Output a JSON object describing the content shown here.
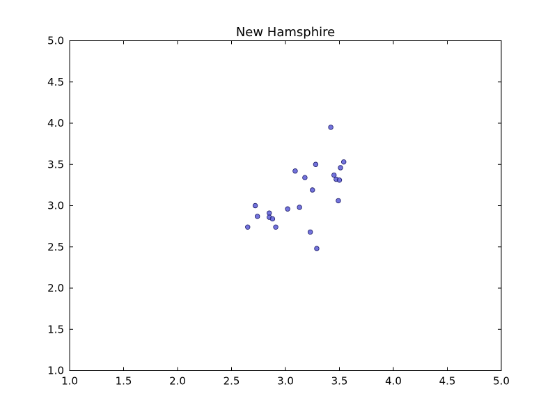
{
  "chart_data": {
    "type": "scatter",
    "title": "New Hamsphire",
    "xlabel": "",
    "ylabel": "",
    "xlim": [
      1.0,
      5.0
    ],
    "ylim": [
      1.0,
      5.0
    ],
    "grid": false,
    "x_ticks": [
      1.0,
      1.5,
      2.0,
      2.5,
      3.0,
      3.5,
      4.0,
      4.5,
      5.0
    ],
    "y_ticks": [
      1.0,
      1.5,
      2.0,
      2.5,
      3.0,
      3.5,
      4.0,
      4.5,
      5.0
    ],
    "x_tick_labels": [
      "1.0",
      "1.5",
      "2.0",
      "2.5",
      "3.0",
      "3.5",
      "4.0",
      "4.5",
      "5.0"
    ],
    "y_tick_labels": [
      "1.0",
      "1.5",
      "2.0",
      "2.5",
      "3.0",
      "3.5",
      "4.0",
      "4.5",
      "5.0"
    ],
    "marker_color": "#5b5bd6",
    "marker_edge_color": "#1a1a66",
    "series": [
      {
        "points": [
          {
            "x": 3.42,
            "y": 3.95
          },
          {
            "x": 3.54,
            "y": 3.53
          },
          {
            "x": 3.28,
            "y": 3.5
          },
          {
            "x": 3.51,
            "y": 3.46
          },
          {
            "x": 3.09,
            "y": 3.42
          },
          {
            "x": 3.45,
            "y": 3.37
          },
          {
            "x": 3.18,
            "y": 3.34
          },
          {
            "x": 3.47,
            "y": 3.32
          },
          {
            "x": 3.5,
            "y": 3.31
          },
          {
            "x": 3.25,
            "y": 3.19
          },
          {
            "x": 3.49,
            "y": 3.06
          },
          {
            "x": 2.72,
            "y": 3.0
          },
          {
            "x": 3.13,
            "y": 2.98
          },
          {
            "x": 3.02,
            "y": 2.96
          },
          {
            "x": 2.85,
            "y": 2.91
          },
          {
            "x": 2.74,
            "y": 2.87
          },
          {
            "x": 2.85,
            "y": 2.86
          },
          {
            "x": 2.88,
            "y": 2.84
          },
          {
            "x": 2.65,
            "y": 2.74
          },
          {
            "x": 2.91,
            "y": 2.74
          },
          {
            "x": 3.23,
            "y": 2.68
          },
          {
            "x": 3.29,
            "y": 2.48
          }
        ]
      }
    ]
  }
}
